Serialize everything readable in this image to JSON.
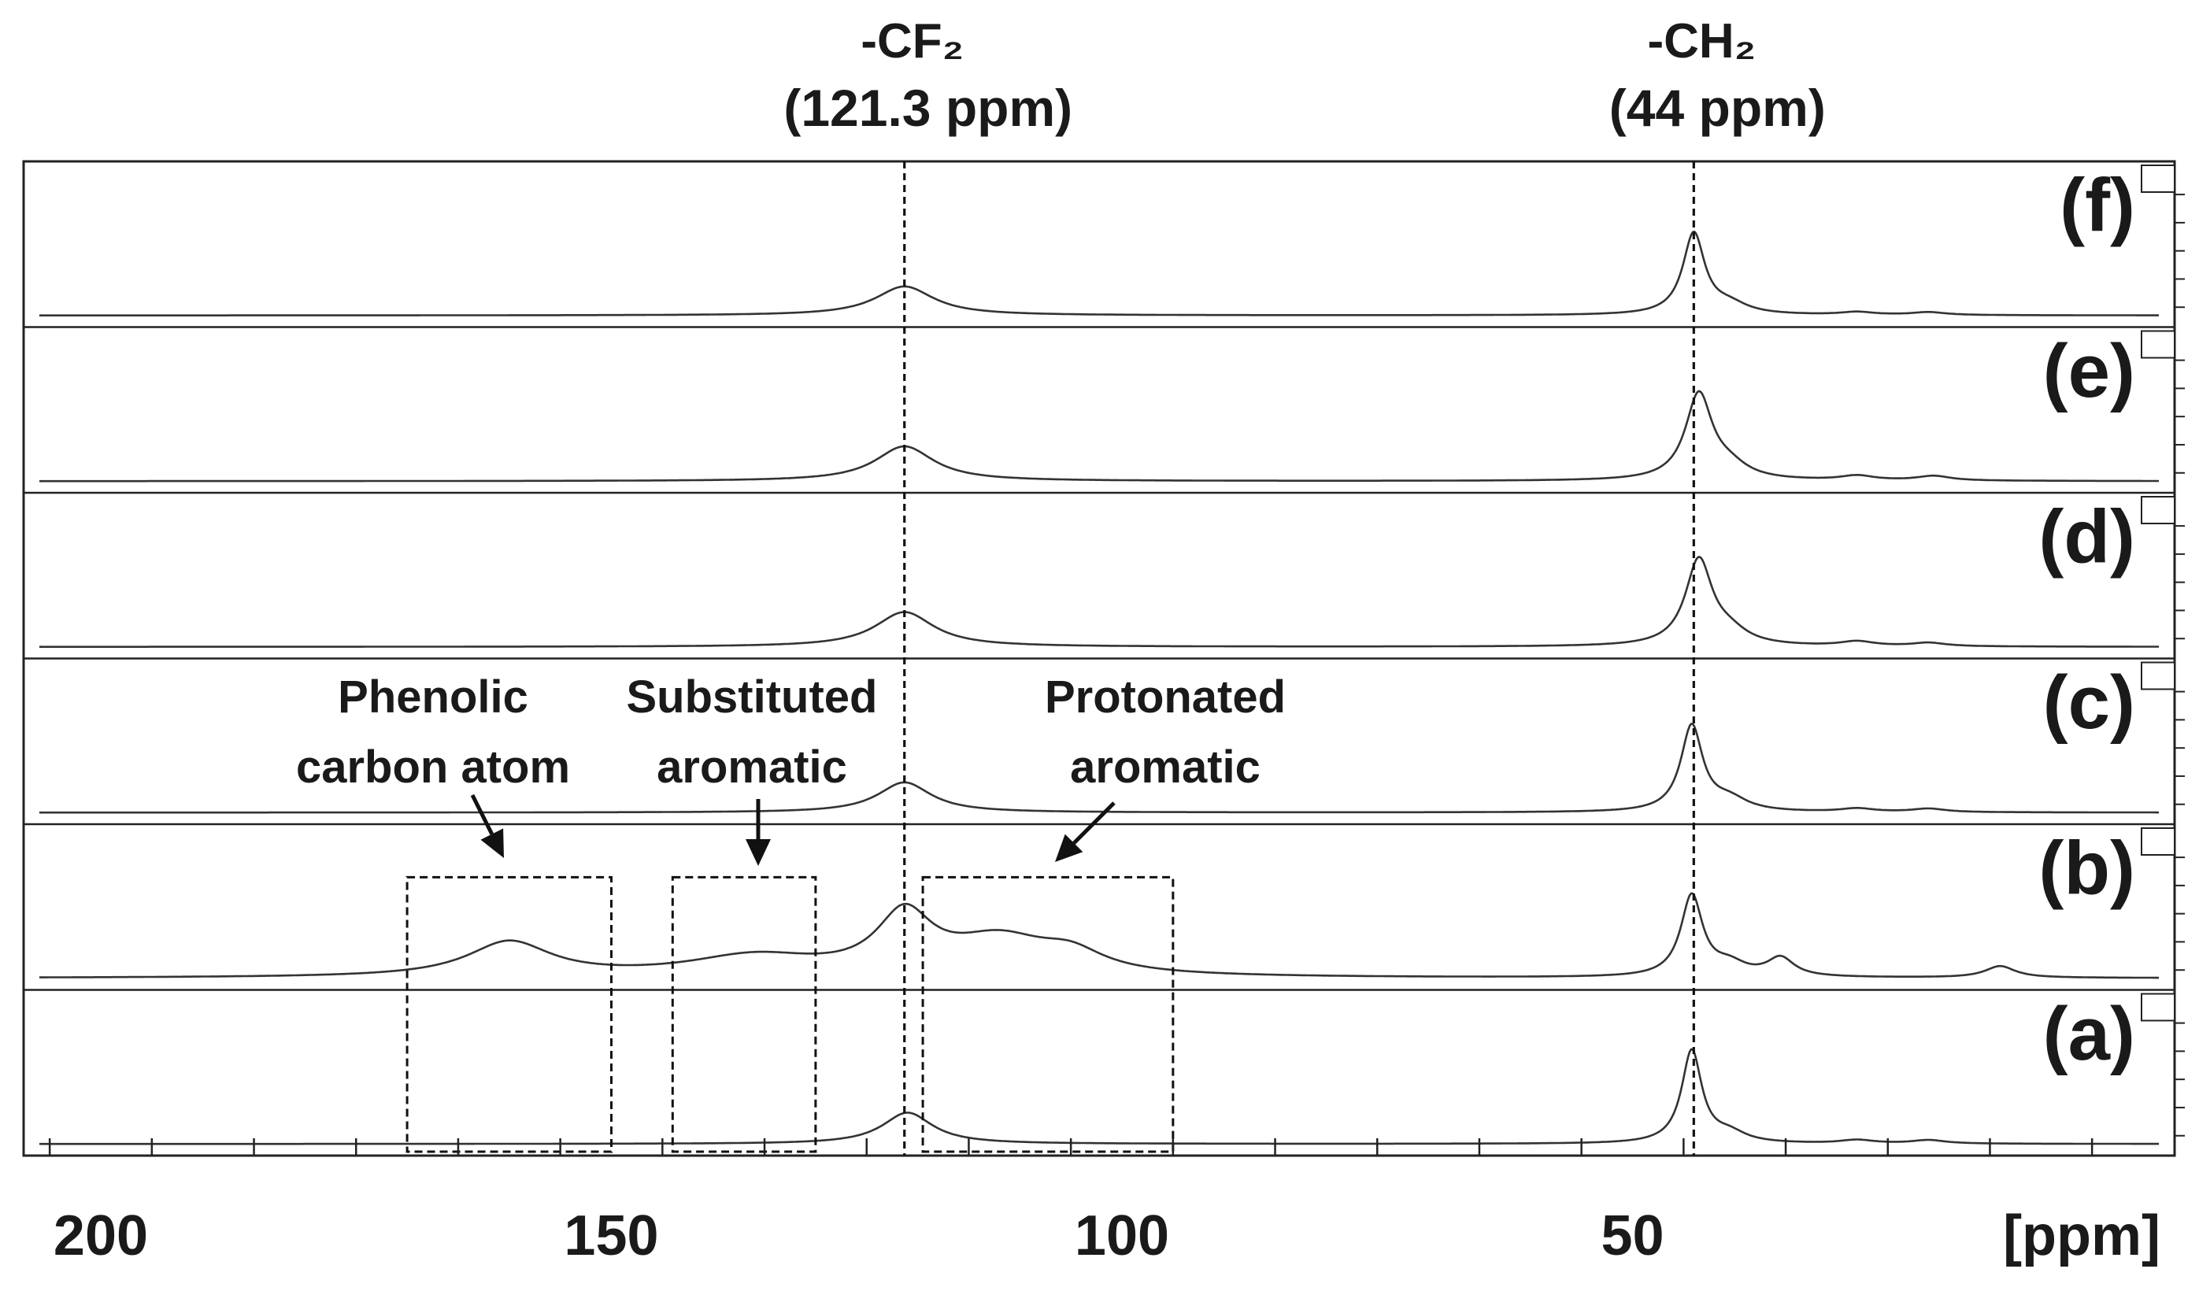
{
  "chart_data": {
    "type": "line",
    "xlabel": "[ppm]",
    "xlim": [
      210,
      -1
    ],
    "x_ticks": [
      {
        "value": 200,
        "label": "200"
      },
      {
        "value": 150,
        "label": "150"
      },
      {
        "value": 100,
        "label": "100"
      },
      {
        "value": 50,
        "label": "50"
      }
    ],
    "reference_lines": [
      {
        "ppm": 121.3,
        "label_line1": "-CF₂",
        "label_line2": "(121.3 ppm)"
      },
      {
        "ppm": 44,
        "label_line1": "-CH₂",
        "label_line2": "(44 ppm)"
      }
    ],
    "series": [
      {
        "name": "(f)",
        "baseline": 0,
        "peaks": [
          {
            "center": 121.3,
            "height": 0.25,
            "width": 3.5
          },
          {
            "center": 44,
            "height": 0.7,
            "width": 1.3
          },
          {
            "center": 40.5,
            "height": 0.08,
            "width": 2.2
          },
          {
            "center": 28,
            "height": 0.025,
            "width": 2
          },
          {
            "center": 21,
            "height": 0.025,
            "width": 2
          }
        ]
      },
      {
        "name": "(e)",
        "baseline": 0,
        "peaks": [
          {
            "center": 121.3,
            "height": 0.3,
            "width": 3.5
          },
          {
            "center": 43.5,
            "height": 0.74,
            "width": 1.6
          },
          {
            "center": 40.5,
            "height": 0.1,
            "width": 2.2
          },
          {
            "center": 28,
            "height": 0.04,
            "width": 2
          },
          {
            "center": 20.5,
            "height": 0.04,
            "width": 2
          }
        ]
      },
      {
        "name": "(d)",
        "baseline": 0,
        "peaks": [
          {
            "center": 121.3,
            "height": 0.3,
            "width": 3.5
          },
          {
            "center": 43.5,
            "height": 0.74,
            "width": 1.6
          },
          {
            "center": 40.5,
            "height": 0.1,
            "width": 2.2
          },
          {
            "center": 28,
            "height": 0.04,
            "width": 2
          },
          {
            "center": 21,
            "height": 0.03,
            "width": 2
          }
        ]
      },
      {
        "name": "(c)",
        "baseline": 0,
        "peaks": [
          {
            "center": 121.3,
            "height": 0.26,
            "width": 3.2
          },
          {
            "center": 44.2,
            "height": 0.74,
            "width": 1.3
          },
          {
            "center": 40.5,
            "height": 0.1,
            "width": 2.2
          },
          {
            "center": 28,
            "height": 0.03,
            "width": 2
          },
          {
            "center": 21,
            "height": 0.03,
            "width": 2
          }
        ]
      },
      {
        "name": "(b)",
        "baseline": 0,
        "peaks": [
          {
            "center": 160,
            "height": 0.3,
            "width": 5
          },
          {
            "center": 136,
            "height": 0.17,
            "width": 8
          },
          {
            "center": 121.3,
            "height": 0.5,
            "width": 3.3
          },
          {
            "center": 112,
            "height": 0.3,
            "width": 6
          },
          {
            "center": 105,
            "height": 0.16,
            "width": 4
          },
          {
            "center": 44.2,
            "height": 0.7,
            "width": 1.3
          },
          {
            "center": 40.5,
            "height": 0.1,
            "width": 2
          },
          {
            "center": 35.5,
            "height": 0.16,
            "width": 1.6
          },
          {
            "center": 14,
            "height": 0.1,
            "width": 1.8
          }
        ]
      },
      {
        "name": "(a)",
        "baseline": 0,
        "peaks": [
          {
            "center": 121,
            "height": 0.27,
            "width": 3
          },
          {
            "center": 44.2,
            "height": 0.8,
            "width": 1.2
          },
          {
            "center": 40.5,
            "height": 0.08,
            "width": 2
          },
          {
            "center": 28,
            "height": 0.03,
            "width": 2
          },
          {
            "center": 21,
            "height": 0.03,
            "width": 2
          }
        ]
      }
    ],
    "annotations": [
      {
        "label_lines": [
          "Phenolic",
          "carbon atom"
        ],
        "box_ppm": [
          170,
          150
        ]
      },
      {
        "label_lines": [
          "Substituted",
          "aromatic"
        ],
        "box_ppm": [
          144,
          130
        ]
      },
      {
        "label_lines": [
          "Protonated",
          "aromatic"
        ],
        "box_ppm": [
          119.5,
          95
        ]
      }
    ]
  }
}
